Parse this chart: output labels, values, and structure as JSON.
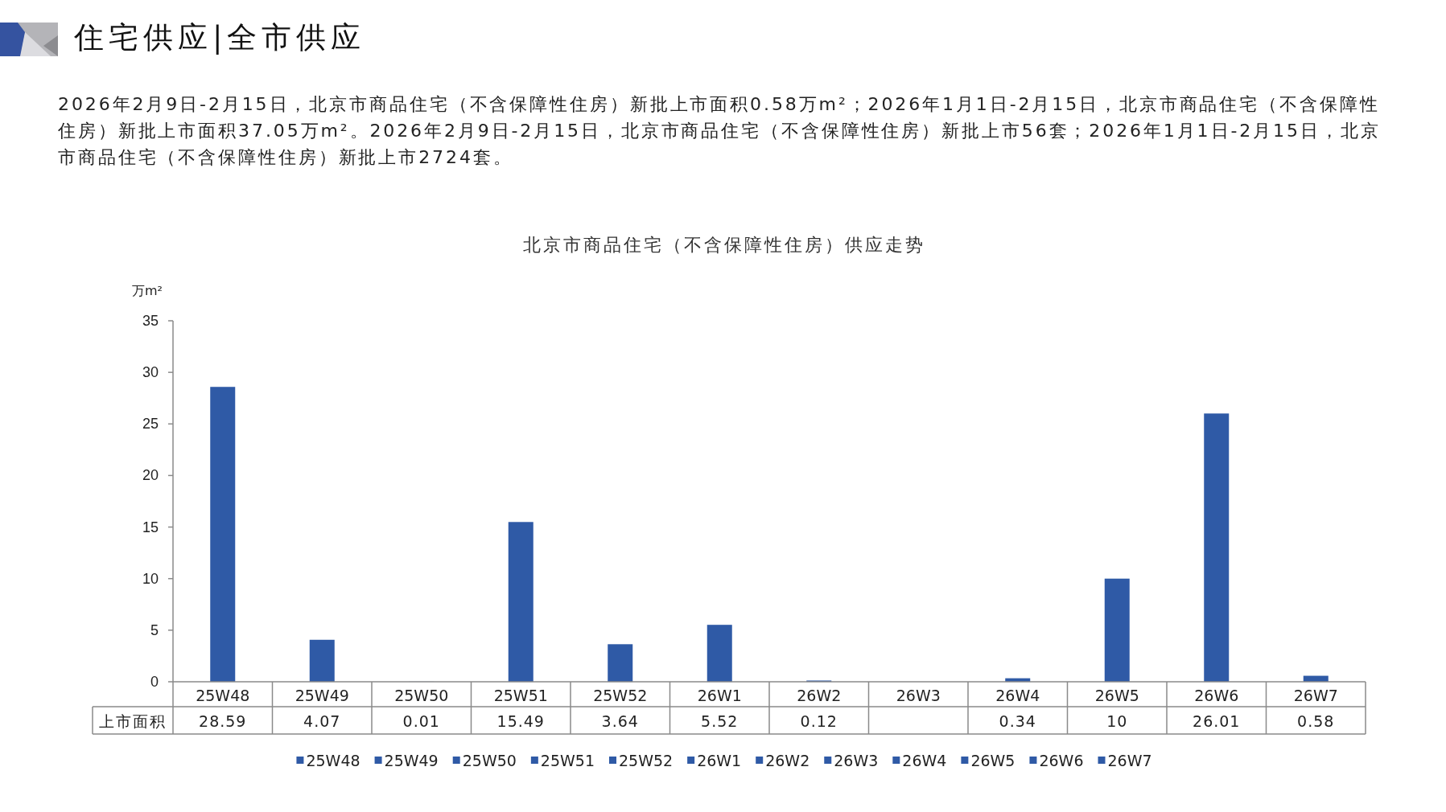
{
  "chart_data": {
    "type": "bar",
    "title": "北京市商品住宅（不含保障性住房）供应走势",
    "ylabel": "万m²",
    "annotations": [
      "住宅供应|全市供应",
      "2026年2月9日-2月15日，北京市商品住宅（不含保障性住房）新批上市面积0.58万m²；2026年1月1日-2月15日，北京市商品住宅（不含保障性住房）新批上市面积37.05万m²。2026年2月9日-2月15日，北京市商品住宅（不含保障性住房）新批上市56套；2026年1月1日-2月15日，北京市商品住宅（不含保障性住房）新批上市2724套。"
    ],
    "categories": [
      "25W48",
      "25W49",
      "25W50",
      "25W51",
      "25W52",
      "26W1",
      "26W2",
      "26W3",
      "26W4",
      "26W5",
      "26W6",
      "26W7"
    ],
    "series": [
      {
        "name": "上市面积",
        "colors": [
          "#2f5aa6",
          "#2f5aa6",
          "#2f5aa6",
          "#2f5aa6",
          "#2f5aa6",
          "#2f5aa6",
          "#2f5aa6",
          "#2f5aa6",
          "#2f5aa6",
          "#2f5aa6",
          "#2f5aa6",
          "#2f5aa6"
        ],
        "values": [
          28.59,
          4.07,
          0.01,
          15.49,
          3.64,
          5.52,
          0.12,
          null,
          0.34,
          10,
          26.01,
          0.58
        ]
      }
    ],
    "ylim": [
      0,
      35
    ],
    "yticks": [
      0,
      5,
      10,
      15,
      20,
      25,
      30,
      35
    ],
    "legend": "bottom",
    "data_labels": true
  }
}
